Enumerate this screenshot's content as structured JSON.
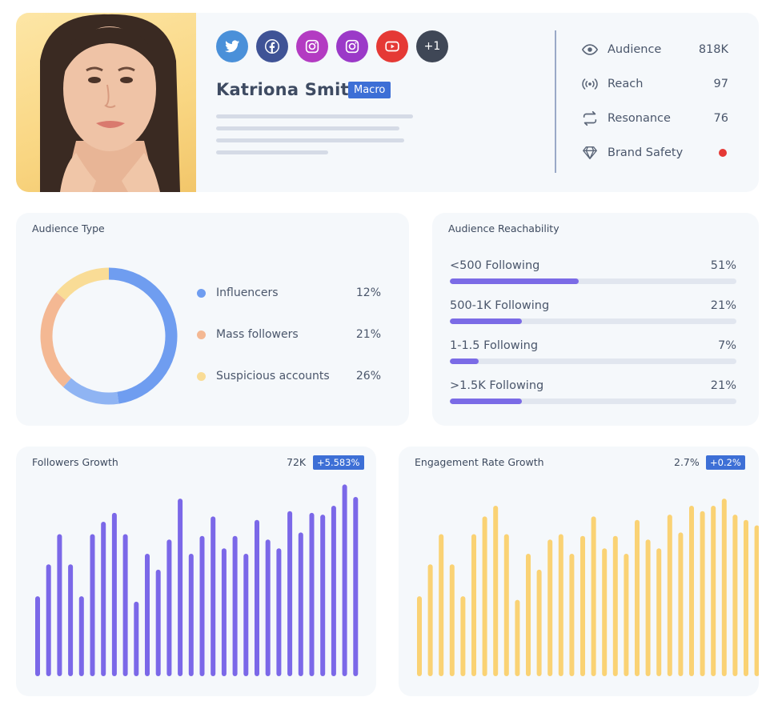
{
  "profile": {
    "name": "Katriona Smith",
    "tier": "Macro",
    "socials": [
      {
        "icon": "twitter-icon",
        "color": "#4a90d9"
      },
      {
        "icon": "facebook-icon",
        "color": "#3f5396"
      },
      {
        "icon": "instagram-icon",
        "color": "#b33bc2"
      },
      {
        "icon": "instagram-icon",
        "color": "#9b39c8"
      },
      {
        "icon": "youtube-icon",
        "color": "#e53935"
      },
      {
        "icon": "more-icon",
        "label": "+1",
        "color": "#3f4756"
      }
    ],
    "stats": [
      {
        "icon": "eye-icon",
        "label": "Audience",
        "value": "818K"
      },
      {
        "icon": "broadcast-icon",
        "label": "Reach",
        "value": "97"
      },
      {
        "icon": "repeat-icon",
        "label": "Resonance",
        "value": "76"
      },
      {
        "icon": "diamond-icon",
        "label": "Brand Safety",
        "value": "",
        "status_color": "#e53935"
      }
    ]
  },
  "audience_type": {
    "title": "Audience Type",
    "items": [
      {
        "label": "Influencers",
        "value": "12%",
        "color": "#6f9df0"
      },
      {
        "label": "Mass followers",
        "value": "21%",
        "color": "#f4b893"
      },
      {
        "label": "Suspicious accounts",
        "value": "26%",
        "color": "#f9dc96"
      }
    ]
  },
  "reachability": {
    "title": "Audience Reachability",
    "items": [
      {
        "label": "<500 Following",
        "value": "51%",
        "fraction": 0.45
      },
      {
        "label": "500-1K Following",
        "value": "21%",
        "fraction": 0.25
      },
      {
        "label": "1-1.5 Following",
        "value": "7%",
        "fraction": 0.1
      },
      {
        "label": ">1.5K Following",
        "value": "21%",
        "fraction": 0.25
      }
    ]
  },
  "followers_growth": {
    "title": "Followers Growth",
    "value": "72K",
    "change": "+5.583%",
    "bar_color": "#7b68e8"
  },
  "engagement_growth": {
    "title": "Engagement Rate Growth",
    "value": "2.7%",
    "change": "+0.2%",
    "bar_color": "#fad274"
  },
  "chart_data": [
    {
      "type": "bar",
      "title": "Followers Growth",
      "values": [
        45,
        63,
        80,
        63,
        45,
        80,
        87,
        92,
        80,
        42,
        69,
        60,
        77,
        100,
        69,
        79,
        90,
        72,
        79,
        69,
        88,
        77,
        72,
        93,
        81,
        92,
        91,
        96,
        108,
        101
      ],
      "ylim": [
        0,
        110
      ]
    },
    {
      "type": "bar",
      "title": "Engagement Rate Growth",
      "values": [
        45,
        63,
        80,
        63,
        45,
        80,
        90,
        96,
        80,
        43,
        69,
        60,
        77,
        80,
        69,
        79,
        90,
        72,
        79,
        69,
        88,
        77,
        72,
        91,
        81,
        96,
        93,
        96,
        100,
        91,
        88,
        85
      ],
      "ylim": [
        0,
        110
      ]
    }
  ]
}
